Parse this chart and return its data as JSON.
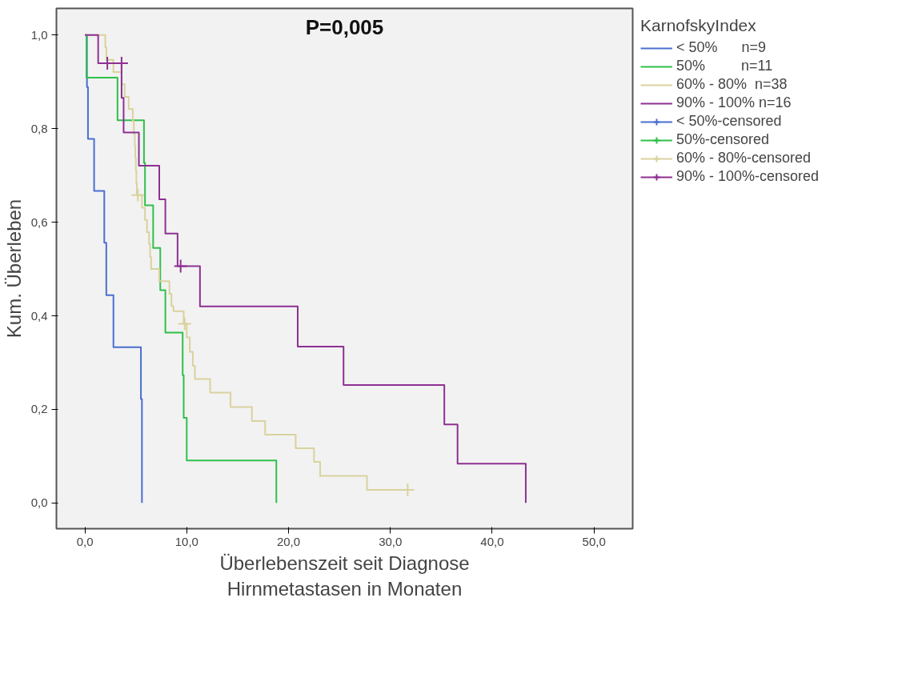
{
  "chart_data": {
    "type": "step",
    "title": "P=0,005",
    "xlabel": "Überlebenszeit seit Diagnose\nHirnmetastasen in Monaten",
    "ylabel": "Kum. Überleben",
    "legend_title": "KarnofskyIndex",
    "legend": "right",
    "grid": false,
    "xlim": [
      -2.8,
      53.8
    ],
    "ylim": [
      -0.055,
      1.057
    ],
    "xticks": [
      {
        "value": 0,
        "label": "0,0"
      },
      {
        "value": 10,
        "label": "10,0"
      },
      {
        "value": 20,
        "label": "20,0"
      },
      {
        "value": 30,
        "label": "30,0"
      },
      {
        "value": 40,
        "label": "40,0"
      },
      {
        "value": 50,
        "label": "50,0"
      }
    ],
    "yticks": [
      {
        "value": 0,
        "label": "0,0"
      },
      {
        "value": 0.2,
        "label": "0,2"
      },
      {
        "value": 0.4,
        "label": "0,4"
      },
      {
        "value": 0.6,
        "label": "0,6"
      },
      {
        "value": 0.8,
        "label": "0,8"
      },
      {
        "value": 1,
        "label": "1,0"
      }
    ],
    "series": [
      {
        "name": "< 50%      n=9",
        "color": "#4a6fd0",
        "x": [
          0,
          0.2,
          0.3,
          0.9,
          1.9,
          2.1,
          2.8,
          5.5,
          5.6
        ],
        "values": [
          1,
          0.889,
          0.778,
          0.667,
          0.556,
          0.444,
          0.333,
          0.222,
          0
        ]
      },
      {
        "name": "50%         n=11",
        "color": "#2fc04a",
        "x": [
          0,
          0.15,
          3.2,
          5.8,
          5.9,
          6.7,
          7.4,
          7.9,
          9.6,
          9.7,
          10.0,
          18.8
        ],
        "values": [
          1,
          0.909,
          0.818,
          0.727,
          0.636,
          0.545,
          0.455,
          0.364,
          0.273,
          0.182,
          0.091,
          0
        ]
      },
      {
        "name": "60% - 80%  n=38",
        "color": "#d9d29e",
        "x": [
          0,
          2.0,
          2.1,
          2.8,
          3.6,
          3.9,
          4.3,
          4.7,
          4.8,
          4.9,
          4.95,
          5.0,
          5.05,
          5.1,
          5.6,
          5.9,
          6.1,
          6.3,
          6.4,
          6.5,
          7.3,
          8.3,
          8.5,
          8.7,
          9.7,
          10.0,
          10.3,
          10.6,
          10.8,
          12.3,
          14.3,
          16.4,
          17.7,
          20.7,
          22.5,
          23.1,
          27.7,
          31.7
        ],
        "values": [
          1,
          0.974,
          0.947,
          0.921,
          0.895,
          0.868,
          0.842,
          0.816,
          0.789,
          0.763,
          0.737,
          0.711,
          0.684,
          0.658,
          0.631,
          0.605,
          0.579,
          0.553,
          0.526,
          0.5,
          0.474,
          0.447,
          0.421,
          0.41,
          0.383,
          0.354,
          0.323,
          0.293,
          0.265,
          0.236,
          0.205,
          0.175,
          0.146,
          0.117,
          0.088,
          0.058,
          0.028,
          0.028
        ]
      },
      {
        "name": "90% - 100% n=16",
        "color": "#8e3092",
        "x": [
          0,
          1.3,
          3.6,
          3.8,
          5.3,
          7.3,
          7.9,
          9.1,
          11.3,
          20.9,
          25.4,
          35.3,
          36.6,
          43.3
        ],
        "values": [
          1,
          0.94,
          0.866,
          0.792,
          0.721,
          0.649,
          0.576,
          0.506,
          0.42,
          0.334,
          0.252,
          0.168,
          0.084,
          0
        ]
      },
      {
        "name": "< 50%-censored",
        "type": "scatter",
        "marker": "cross",
        "color": "#4a6fd0"
      },
      {
        "name": "50%-censored",
        "type": "scatter",
        "marker": "cross",
        "color": "#2fc04a"
      },
      {
        "name": "60% - 80%-censored",
        "type": "scatter",
        "marker": "cross",
        "color": "#d9d29e",
        "x": [
          5.2,
          9.8,
          31.7
        ],
        "values": [
          0.658,
          0.383,
          0.028
        ]
      },
      {
        "name": "90% - 100%-censored",
        "type": "scatter",
        "marker": "cross",
        "color": "#8e3092",
        "x": [
          2.2,
          3.6,
          9.4
        ],
        "values": [
          0.94,
          0.94,
          0.506
        ]
      }
    ]
  }
}
